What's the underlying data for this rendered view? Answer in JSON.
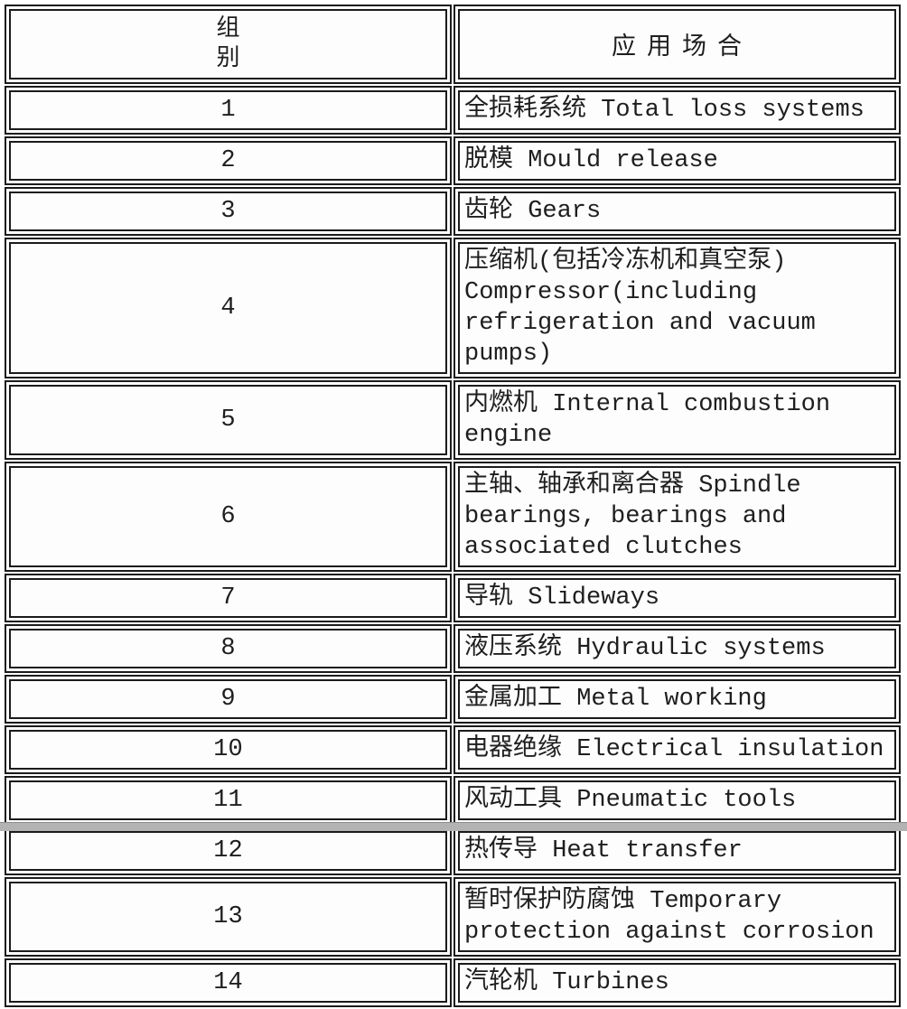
{
  "page": {
    "type": "scanned-table",
    "line_color": "#1b1b1b",
    "cell_background": "#fdfdfd",
    "page_background": "#ffffff",
    "bottom_strip_color": "#b3b3b3"
  },
  "table": {
    "header": {
      "group_label_line1": "组",
      "group_label_line2": "别",
      "application_label": "应用场合"
    },
    "rows": [
      {
        "group": "1",
        "application": "全损耗系统 Total loss systems"
      },
      {
        "group": "2",
        "application": "脱模 Mould release"
      },
      {
        "group": "3",
        "application": "齿轮 Gears"
      },
      {
        "group": "4",
        "application": "压缩机(包括冷冻机和真空泵) Compressor(including refrigeration and vacuum pumps)"
      },
      {
        "group": "5",
        "application": "内燃机 Internal combustion engine"
      },
      {
        "group": "6",
        "application": "主轴、轴承和离合器 Spindle bearings, bearings and associated clutches"
      },
      {
        "group": "7",
        "application": "导轨 Slideways"
      },
      {
        "group": "8",
        "application": "液压系统 Hydraulic systems"
      },
      {
        "group": "9",
        "application": "金属加工 Metal working"
      },
      {
        "group": "10",
        "application": "电器绝缘 Electrical insulation"
      },
      {
        "group": "11",
        "application": "风动工具 Pneumatic tools"
      },
      {
        "group": "12",
        "application": "热传导 Heat transfer"
      },
      {
        "group": "13",
        "application": "暂时保护防腐蚀 Temporary protection against corrosion"
      },
      {
        "group": "14",
        "application": "汽轮机 Turbines"
      }
    ]
  }
}
